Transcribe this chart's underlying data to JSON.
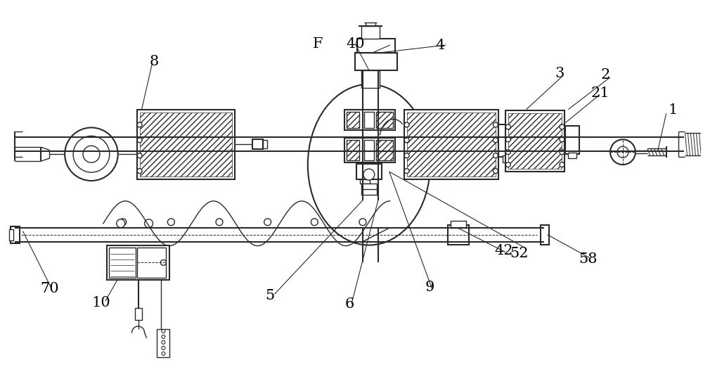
{
  "bg_color": "#ffffff",
  "line_color": "#2a2a2a",
  "figsize": [
    10.0,
    5.29
  ],
  "dpi": 100
}
